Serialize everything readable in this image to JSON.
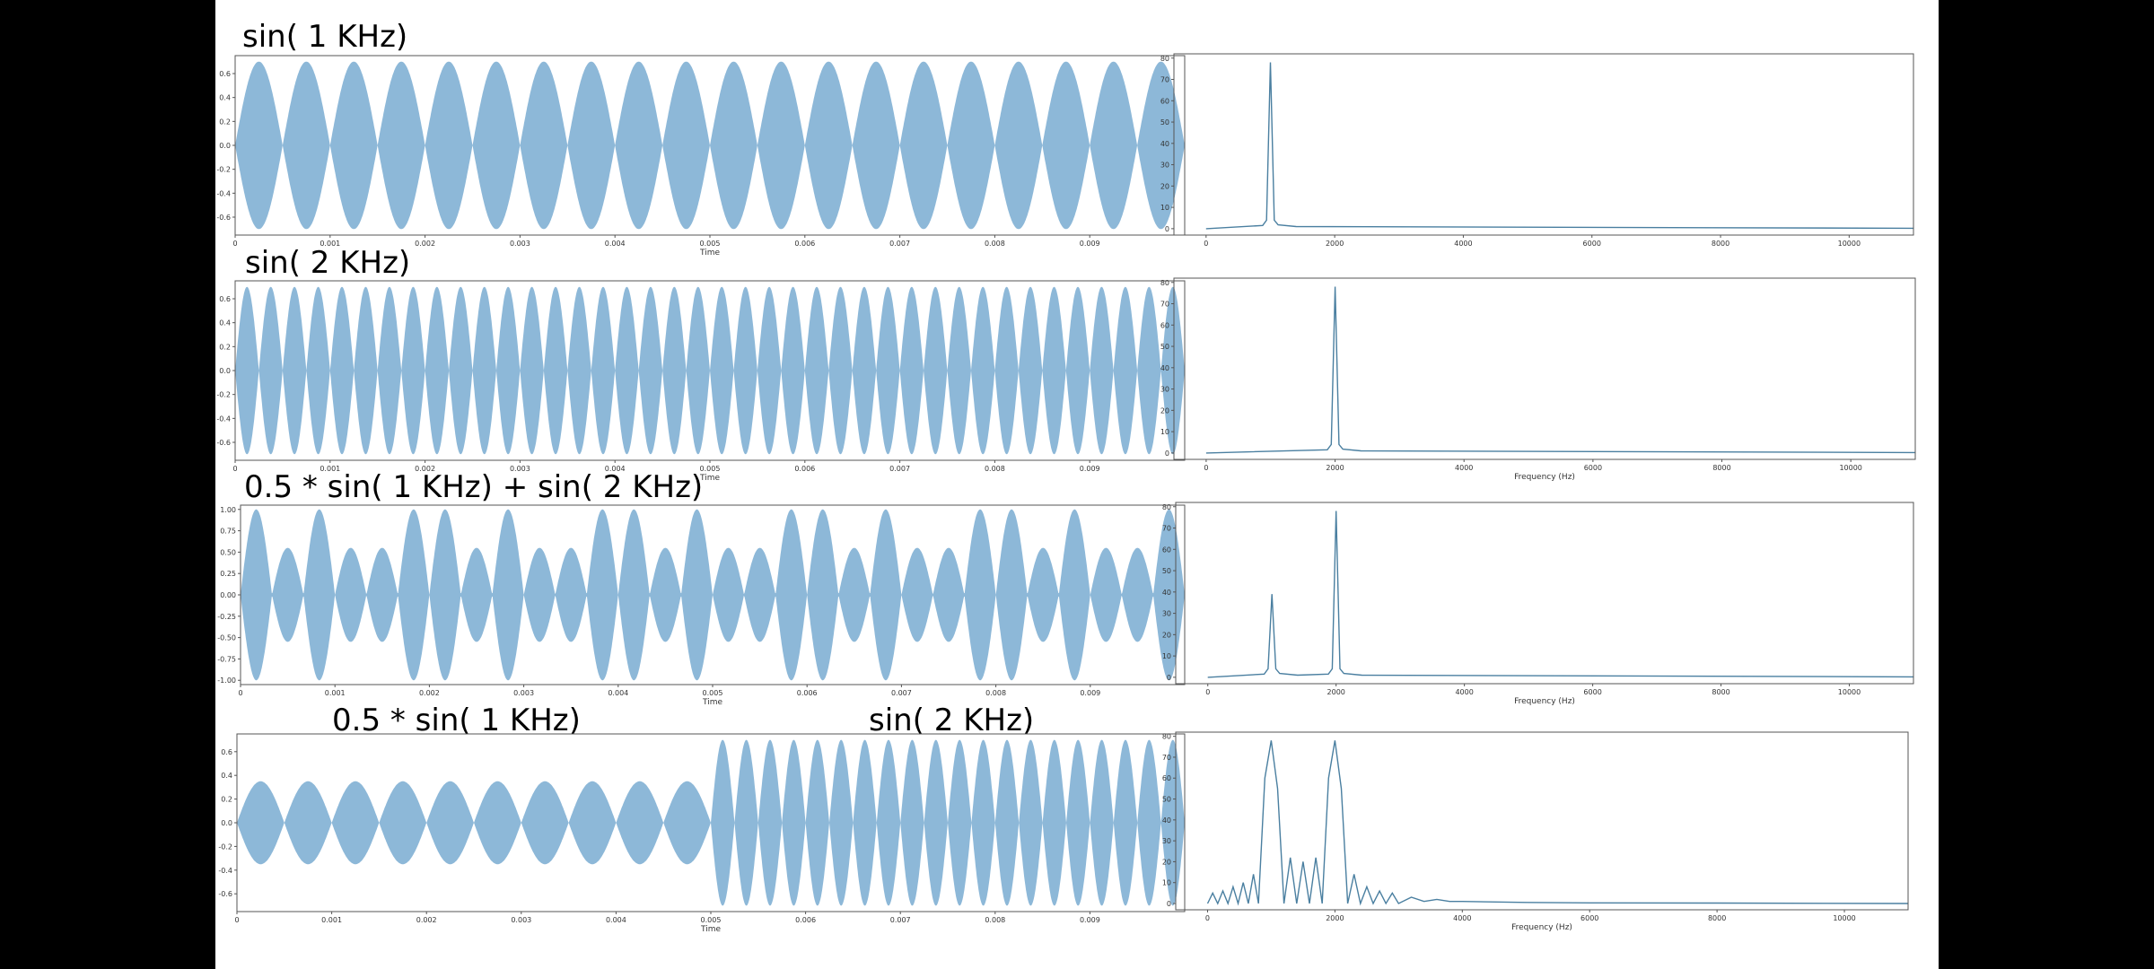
{
  "labels": {
    "row1": "sin( 1 KHz)",
    "row2": "sin( 2 KHz)",
    "row3": "0.5 * sin( 1 KHz) +  sin( 2 KHz)",
    "row4a": "0.5 * sin( 1 KHz)",
    "row4b": "sin( 2 KHz)"
  },
  "colors": {
    "fill": "#8db8d8",
    "line": "#4a7fa0"
  },
  "chart_data": [
    {
      "type": "area",
      "signal": "sin( 1 KHz)",
      "xlabel": "Time",
      "xlim": [
        0,
        0.01
      ],
      "ylim": [
        -0.75,
        0.75
      ],
      "xticks": [
        "0",
        "0.001",
        "0.002",
        "0.003",
        "0.004",
        "0.005",
        "0.006",
        "0.007",
        "0.008",
        "0.009"
      ],
      "yticks": [
        "0.6",
        "0.4",
        "0.2",
        "0.0",
        "-0.2",
        "-0.4",
        "-0.6"
      ],
      "envelope_peak": 0.7,
      "lobes": 20
    },
    {
      "type": "line",
      "xlabel": "",
      "xlim": [
        -500,
        11000
      ],
      "ylim": [
        -3,
        82
      ],
      "xticks": [
        "0",
        "2000",
        "4000",
        "6000",
        "8000",
        "10000"
      ],
      "yticks": [
        "80",
        "70",
        "60",
        "50",
        "40",
        "30",
        "20",
        "10",
        "0"
      ],
      "peaks": [
        {
          "x": 1000,
          "y": 78
        }
      ]
    },
    {
      "type": "area",
      "signal": "sin( 2 KHz)",
      "xlabel": "Time",
      "xlim": [
        0,
        0.01
      ],
      "ylim": [
        -0.75,
        0.75
      ],
      "xticks": [
        "0",
        "0.001",
        "0.002",
        "0.003",
        "0.004",
        "0.005",
        "0.006",
        "0.007",
        "0.008",
        "0.009"
      ],
      "yticks": [
        "0.6",
        "0.4",
        "0.2",
        "0.0",
        "-0.2",
        "-0.4",
        "-0.6"
      ],
      "envelope_peak": 0.7,
      "lobes": 40
    },
    {
      "type": "line",
      "xlabel": "Frequency (Hz)",
      "xlim": [
        -500,
        11000
      ],
      "ylim": [
        -3,
        82
      ],
      "xticks": [
        "0",
        "2000",
        "4000",
        "6000",
        "8000",
        "10000"
      ],
      "yticks": [
        "80",
        "70",
        "60",
        "50",
        "40",
        "30",
        "20",
        "10",
        "0"
      ],
      "peaks": [
        {
          "x": 2000,
          "y": 78
        }
      ]
    },
    {
      "type": "area",
      "signal": "0.5 * sin( 1 KHz) +  sin( 2 KHz)",
      "xlabel": "Time",
      "xlim": [
        0,
        0.01
      ],
      "ylim": [
        -1.05,
        1.05
      ],
      "xticks": [
        "0",
        "0.001",
        "0.002",
        "0.003",
        "0.004",
        "0.005",
        "0.006",
        "0.007",
        "0.008",
        "0.009"
      ],
      "yticks": [
        "1.00",
        "0.75",
        "0.50",
        "0.25",
        "0.00",
        "-0.25",
        "-0.50",
        "-0.75",
        "-1.00"
      ],
      "envelope_peak": 1.0,
      "lobes": 30
    },
    {
      "type": "line",
      "xlabel": "Frequency (Hz)",
      "xlim": [
        -500,
        11000
      ],
      "ylim": [
        -3,
        82
      ],
      "xticks": [
        "0",
        "2000",
        "4000",
        "6000",
        "8000",
        "10000"
      ],
      "yticks": [
        "80",
        "70",
        "60",
        "50",
        "40",
        "30",
        "20",
        "10",
        "0"
      ],
      "peaks": [
        {
          "x": 1000,
          "y": 39
        },
        {
          "x": 2000,
          "y": 78
        }
      ]
    },
    {
      "type": "area",
      "signal": "0.5 * sin( 1 KHz) then sin( 2 KHz)",
      "xlabel": "Time",
      "xlim": [
        0,
        0.01
      ],
      "ylim": [
        -0.75,
        0.75
      ],
      "xticks": [
        "0",
        "0.001",
        "0.002",
        "0.003",
        "0.004",
        "0.005",
        "0.006",
        "0.007",
        "0.008",
        "0.009"
      ],
      "yticks": [
        "0.6",
        "0.4",
        "0.2",
        "0.0",
        "-0.2",
        "-0.4",
        "-0.6"
      ],
      "segments": [
        {
          "from": 0,
          "to": 0.005,
          "peak": 0.35,
          "lobes": 10
        },
        {
          "from": 0.005,
          "to": 0.01,
          "peak": 0.7,
          "lobes": 20
        }
      ]
    },
    {
      "type": "line",
      "xlabel": "Frequency (Hz)",
      "xlim": [
        -500,
        11000
      ],
      "ylim": [
        -3,
        82
      ],
      "xticks": [
        "0",
        "2000",
        "4000",
        "6000",
        "8000",
        "10000"
      ],
      "yticks": [
        "80",
        "70",
        "60",
        "50",
        "40",
        "30",
        "20",
        "10",
        "0"
      ],
      "points": [
        [
          0,
          0
        ],
        [
          80,
          5
        ],
        [
          160,
          0
        ],
        [
          240,
          6
        ],
        [
          320,
          0
        ],
        [
          400,
          8
        ],
        [
          480,
          0
        ],
        [
          560,
          10
        ],
        [
          640,
          0
        ],
        [
          720,
          14
        ],
        [
          800,
          0
        ],
        [
          900,
          60
        ],
        [
          1000,
          78
        ],
        [
          1100,
          55
        ],
        [
          1200,
          0
        ],
        [
          1300,
          22
        ],
        [
          1400,
          0
        ],
        [
          1500,
          20
        ],
        [
          1600,
          0
        ],
        [
          1700,
          22
        ],
        [
          1800,
          0
        ],
        [
          1900,
          60
        ],
        [
          2000,
          78
        ],
        [
          2100,
          55
        ],
        [
          2200,
          0
        ],
        [
          2300,
          14
        ],
        [
          2400,
          0
        ],
        [
          2500,
          8
        ],
        [
          2600,
          0
        ],
        [
          2700,
          6
        ],
        [
          2800,
          0
        ],
        [
          2900,
          5
        ],
        [
          3000,
          0
        ],
        [
          3200,
          3
        ],
        [
          3400,
          1
        ],
        [
          3600,
          2
        ],
        [
          3800,
          1
        ],
        [
          4000,
          1
        ],
        [
          5000,
          0.5
        ],
        [
          6000,
          0.3
        ],
        [
          8000,
          0.2
        ],
        [
          11000,
          0
        ]
      ]
    }
  ]
}
